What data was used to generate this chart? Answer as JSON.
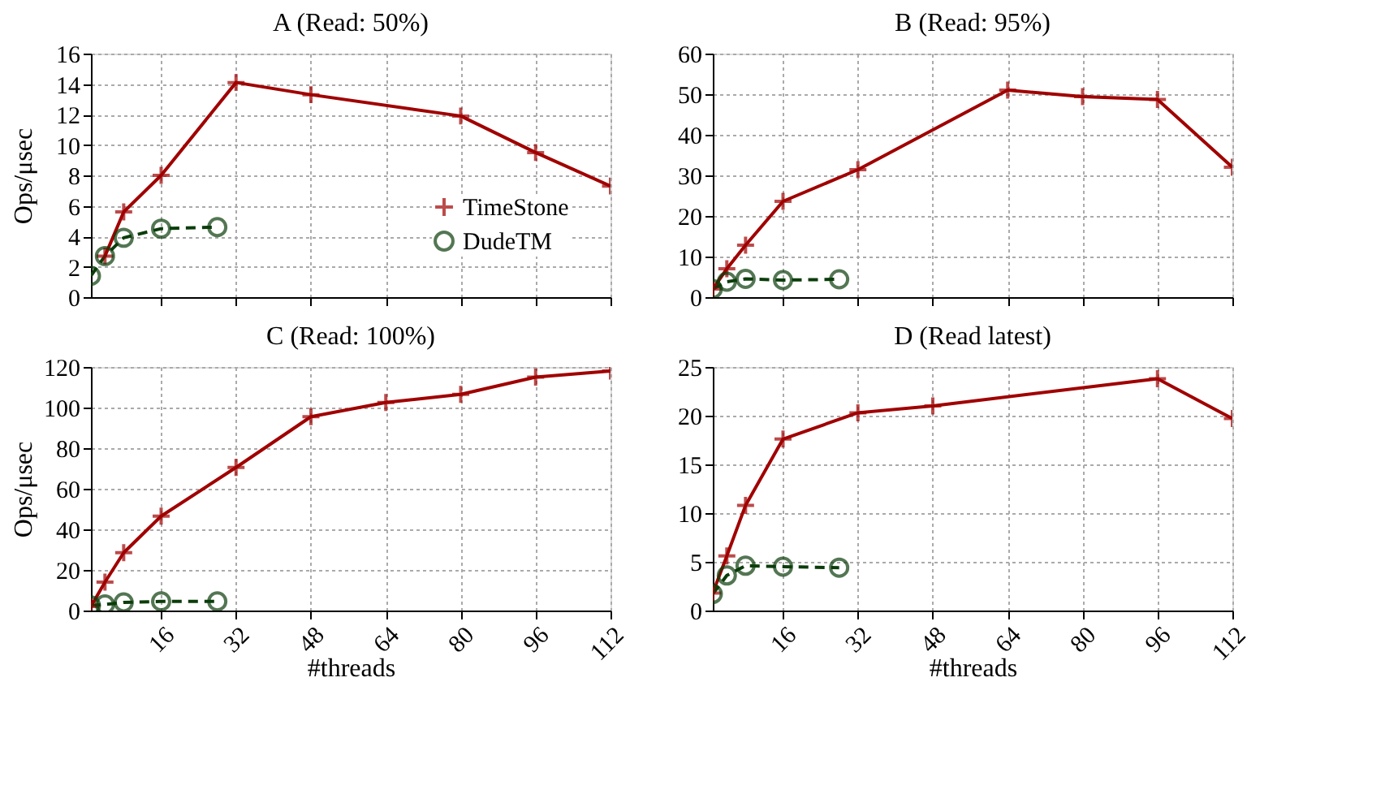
{
  "chart_data": [
    {
      "type": "line",
      "title": "A (Read: 50%)",
      "ylabel": "Ops/μsec",
      "xlim": [
        1,
        112
      ],
      "xticks": [
        16,
        32,
        48,
        64,
        80,
        96,
        112
      ],
      "ylim": [
        0,
        16
      ],
      "yticks": [
        0,
        2,
        4,
        6,
        8,
        10,
        12,
        14,
        16
      ],
      "grid": true,
      "legend": "bottom right",
      "tick_labels": "y",
      "series": [
        {
          "name": "TimeStone",
          "color": "#a00000",
          "marker": "cross",
          "line_style": "solid",
          "x": [
            4,
            8,
            16,
            32,
            48,
            80,
            96,
            112
          ],
          "values": [
            2.7,
            5.6,
            8.0,
            14.1,
            13.3,
            11.9,
            9.5,
            7.3
          ]
        },
        {
          "name": "DudeTM",
          "color": "#0b3d0b",
          "marker": "circle",
          "line_style": "dashed",
          "x": [
            1,
            4,
            8,
            16,
            28
          ],
          "values": [
            1.4,
            2.7,
            3.9,
            4.5,
            4.6
          ]
        }
      ]
    },
    {
      "type": "line",
      "title": "B (Read: 95%)",
      "xlim": [
        1,
        112
      ],
      "xticks": [
        16,
        32,
        48,
        64,
        80,
        96,
        112
      ],
      "ylim": [
        0,
        60
      ],
      "yticks": [
        0,
        10,
        20,
        30,
        40,
        50,
        60
      ],
      "grid": true,
      "tick_labels": "y",
      "series": [
        {
          "color": "#a00000",
          "marker": "cross",
          "line_style": "solid",
          "x": [
            1,
            4,
            8,
            16,
            32,
            64,
            80,
            96,
            112
          ],
          "values": [
            2,
            7,
            12.8,
            23.6,
            31.4,
            51,
            49.4,
            48.7,
            32
          ]
        },
        {
          "color": "#0b3d0b",
          "marker": "circle",
          "line_style": "dashed",
          "x": [
            1,
            4,
            8,
            16,
            28
          ],
          "values": [
            2,
            3.8,
            4.5,
            4.2,
            4.4
          ]
        }
      ]
    },
    {
      "type": "line",
      "title": "C (Read: 100%)",
      "ylabel": "Ops/μsec",
      "xlabel": "#threads",
      "xlim": [
        1,
        112
      ],
      "xticks": [
        16,
        32,
        48,
        64,
        80,
        96,
        112
      ],
      "ylim": [
        0,
        120
      ],
      "yticks": [
        0,
        20,
        40,
        60,
        80,
        100,
        120
      ],
      "grid": true,
      "series": [
        {
          "color": "#a00000",
          "marker": "cross",
          "line_style": "solid",
          "x": [
            1,
            4,
            8,
            16,
            32,
            48,
            64,
            80,
            96,
            112
          ],
          "values": [
            2,
            14,
            28.5,
            46.5,
            70.5,
            95.5,
            102.5,
            106.5,
            115,
            118
          ]
        },
        {
          "color": "#0b3d0b",
          "marker": "circle",
          "line_style": "dashed",
          "x": [
            1,
            4,
            8,
            16,
            28
          ],
          "values": [
            2.5,
            3,
            4,
            4.5,
            4.5
          ]
        }
      ]
    },
    {
      "type": "line",
      "title": "D (Read latest)",
      "xlabel": "#threads",
      "xlim": [
        1,
        112
      ],
      "xticks": [
        16,
        32,
        48,
        64,
        80,
        96,
        112
      ],
      "ylim": [
        0,
        25
      ],
      "yticks": [
        0,
        5,
        10,
        15,
        20,
        25
      ],
      "grid": true,
      "series": [
        {
          "color": "#a00000",
          "marker": "cross",
          "line_style": "solid",
          "x": [
            1,
            4,
            8,
            16,
            32,
            48,
            96,
            112
          ],
          "values": [
            1.8,
            5.6,
            10.8,
            17.6,
            20.3,
            21,
            23.8,
            19.7
          ]
        },
        {
          "color": "#0b3d0b",
          "marker": "circle",
          "line_style": "dashed",
          "x": [
            1,
            4,
            8,
            16,
            28
          ],
          "values": [
            1.7,
            3.6,
            4.6,
            4.5,
            4.4
          ]
        }
      ]
    }
  ]
}
